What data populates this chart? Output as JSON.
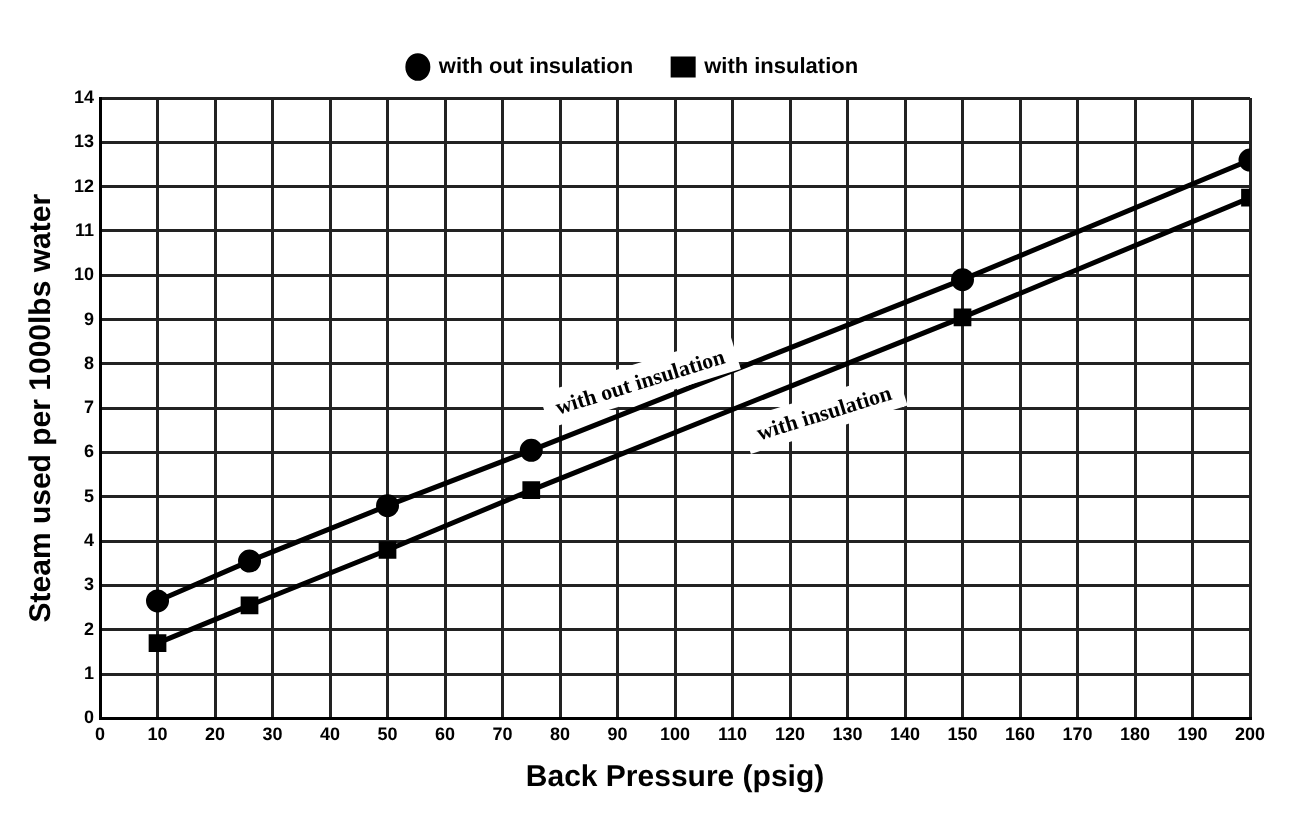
{
  "chart_data": {
    "type": "line",
    "xlabel": "Back Pressure (psig)",
    "ylabel": "Steam used per 1000lbs water",
    "series": [
      {
        "name": "with out insulation",
        "color": "#000000",
        "marker": "circle",
        "x": [
          10,
          26,
          50,
          75,
          150,
          200
        ],
        "values": [
          2.65,
          3.55,
          4.8,
          6.05,
          9.9,
          12.6
        ]
      },
      {
        "name": "with insulation",
        "color": "#000000",
        "marker": "square",
        "x": [
          10,
          26,
          50,
          75,
          150,
          200
        ],
        "values": [
          1.7,
          2.55,
          3.8,
          5.15,
          9.05,
          11.75
        ]
      }
    ],
    "xlim": [
      0,
      200
    ],
    "xticks": [
      0,
      10,
      20,
      30,
      40,
      50,
      60,
      70,
      80,
      90,
      100,
      110,
      120,
      130,
      140,
      150,
      160,
      170,
      180,
      190,
      200
    ],
    "ylim": [
      0,
      14
    ],
    "yticks": [
      0,
      1,
      2,
      3,
      4,
      5,
      6,
      7,
      8,
      9,
      10,
      11,
      12,
      13,
      14
    ],
    "grid": true,
    "legend": "top",
    "line_style": "solid",
    "annotations": [
      "with out insulation",
      "with insulation"
    ]
  }
}
